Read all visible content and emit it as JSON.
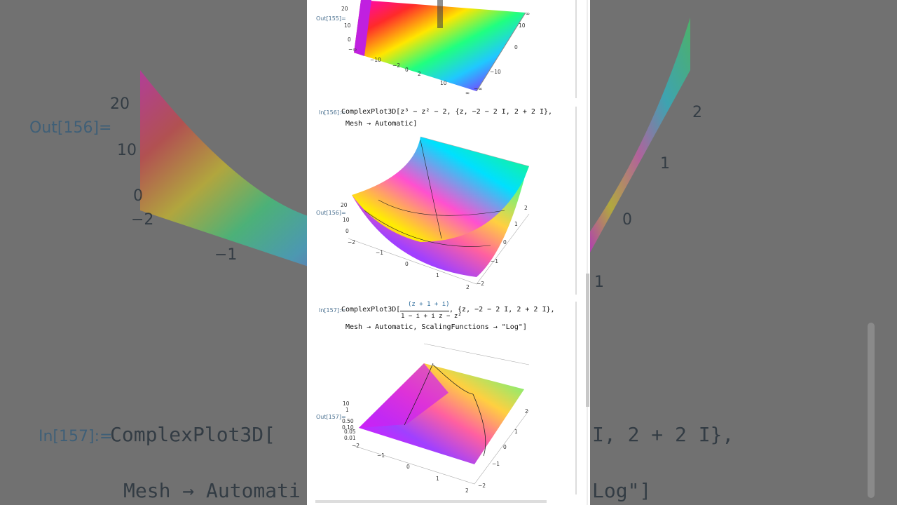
{
  "background": {
    "texts": [
      "Out[156]=",
      "20",
      "10",
      "0",
      "−2",
      "−1",
      "2",
      "1",
      "0",
      "1",
      "In[157]:=",
      "ComplexPlot3D[",
      "I, 2 + 2 I},",
      "Mesh → Automati",
      "Log\"]"
    ]
  },
  "cells": [
    {
      "out_label": "Out[155]=",
      "ticks": [
        "20",
        "10",
        "0",
        "−∞",
        "−10",
        "−2",
        "0",
        "2",
        "10",
        "∞",
        "∞",
        "10",
        "0",
        "−10",
        "−∞"
      ]
    },
    {
      "in_label": "In[156]:=",
      "code": [
        "ComplexPlot3D[z³ − z² − 2, {z, −2 − 2 I, 2 + 2 I},",
        "Mesh → Automatic]"
      ],
      "out_label": "Out[156]=",
      "ticks": [
        "20",
        "10",
        "0",
        "−2",
        "−1",
        "0",
        "1",
        "2",
        "2",
        "1",
        "0",
        "−1",
        "−2"
      ]
    },
    {
      "in_label": "In[157]:=",
      "code": [
        "ComplexPlot3D[",
        "(z + 1 + i)",
        "1 − i + i z − z²",
        ", {z, −2 − 2 I, 2 + 2 I},",
        "Mesh → Automatic, ScalingFunctions → \"Log\"]"
      ],
      "out_label": "Out[157]=",
      "ticks": [
        "10",
        "1",
        "0.50",
        "0.10",
        "0.05",
        "0.01",
        "−2",
        "−1",
        "0",
        "1",
        "2",
        "2",
        "1",
        "0",
        "−1",
        "−2"
      ]
    }
  ]
}
